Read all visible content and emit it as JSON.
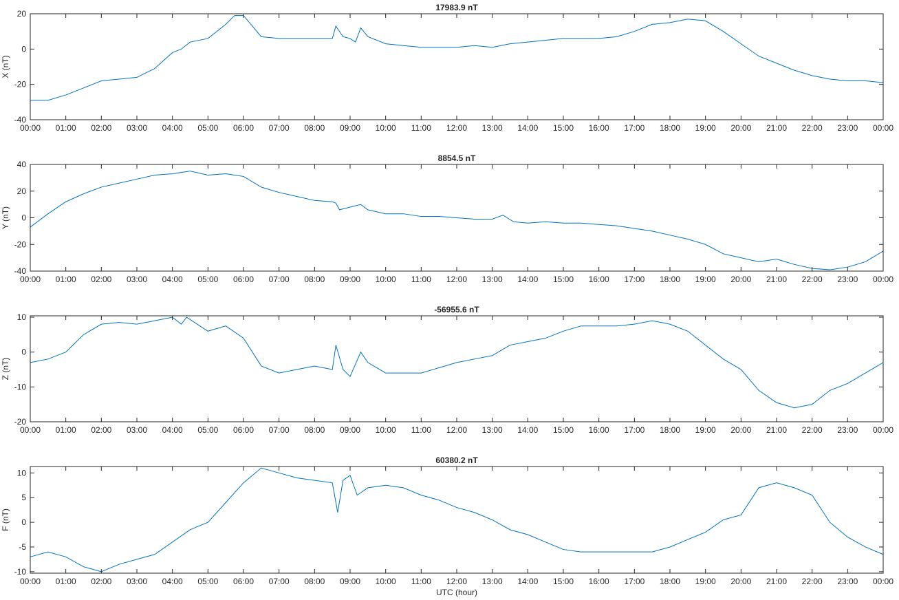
{
  "chart_data": [
    {
      "type": "line",
      "title": "17983.9 nT",
      "ylabel": "X (nT)",
      "x": [
        0,
        0.5,
        1,
        1.5,
        2,
        2.5,
        3,
        3.5,
        4,
        4.25,
        4.5,
        5,
        5.5,
        5.75,
        6,
        6.5,
        7,
        7.5,
        8,
        8.5,
        8.6,
        8.8,
        9,
        9.15,
        9.3,
        9.5,
        10,
        10.5,
        11,
        11.5,
        12,
        12.5,
        13,
        13.5,
        14,
        14.5,
        15,
        15.5,
        16,
        16.5,
        17,
        17.5,
        18,
        18.5,
        19,
        19.5,
        20,
        20.5,
        21,
        21.5,
        22,
        22.5,
        23,
        23.5,
        24
      ],
      "series": [
        {
          "color": "#0072bd",
          "values": [
            -29,
            -29,
            -26,
            -22,
            -18,
            -17,
            -16,
            -11,
            -2,
            0,
            4,
            6,
            14,
            19,
            19,
            7,
            6,
            6,
            6,
            6,
            13,
            7,
            6,
            4,
            12,
            7,
            3,
            2,
            1,
            1,
            1,
            2,
            1,
            3,
            4,
            5,
            6,
            6,
            6,
            7,
            10,
            14,
            15,
            17,
            16,
            10,
            3,
            -4,
            -8,
            -12,
            -15,
            -17,
            -18,
            -18,
            -19
          ]
        }
      ],
      "xlim": [
        0,
        24
      ],
      "ylim": [
        -40,
        20
      ],
      "yticks": [
        -40,
        -20,
        0,
        20
      ],
      "xticks": [
        {
          "value": 0,
          "label": "00:00"
        },
        {
          "value": 1,
          "label": "01:00"
        },
        {
          "value": 2,
          "label": "02:00"
        },
        {
          "value": 3,
          "label": "03:00"
        },
        {
          "value": 4,
          "label": "04:00"
        },
        {
          "value": 5,
          "label": "05:00"
        },
        {
          "value": 6,
          "label": "06:00"
        },
        {
          "value": 7,
          "label": "07:00"
        },
        {
          "value": 8,
          "label": "08:00"
        },
        {
          "value": 9,
          "label": "09:00"
        },
        {
          "value": 10,
          "label": "10:00"
        },
        {
          "value": 11,
          "label": "11:00"
        },
        {
          "value": 12,
          "label": "12:00"
        },
        {
          "value": 13,
          "label": "13:00"
        },
        {
          "value": 14,
          "label": "14:00"
        },
        {
          "value": 15,
          "label": "15:00"
        },
        {
          "value": 16,
          "label": "16:00"
        },
        {
          "value": 17,
          "label": "17:00"
        },
        {
          "value": 18,
          "label": "18:00"
        },
        {
          "value": 19,
          "label": "19:00"
        },
        {
          "value": 20,
          "label": "20:00"
        },
        {
          "value": 21,
          "label": "21:00"
        },
        {
          "value": 22,
          "label": "22:00"
        },
        {
          "value": 23,
          "label": "23:00"
        },
        {
          "value": 24,
          "label": "00:00"
        }
      ]
    },
    {
      "type": "line",
      "title": "8854.5 nT",
      "ylabel": "Y (nT)",
      "x": [
        0,
        0.5,
        1,
        1.5,
        2,
        2.5,
        3,
        3.5,
        4,
        4.5,
        5,
        5.5,
        6,
        6.5,
        7,
        7.5,
        8,
        8.5,
        8.6,
        8.7,
        9,
        9.3,
        9.5,
        10,
        10.5,
        11,
        11.5,
        12,
        12.5,
        13,
        13.3,
        13.6,
        14,
        14.5,
        15,
        15.5,
        16,
        16.5,
        17,
        17.5,
        18,
        18.5,
        19,
        19.5,
        20,
        20.5,
        21,
        21.5,
        22,
        22.5,
        23,
        23.5,
        24
      ],
      "series": [
        {
          "color": "#0072bd",
          "values": [
            -7,
            3,
            12,
            18,
            23,
            26,
            29,
            32,
            33,
            35,
            32,
            33,
            31,
            23,
            19,
            16,
            13,
            12,
            11,
            6,
            8,
            10,
            6,
            3,
            3,
            1,
            1,
            0,
            -1,
            -1,
            2,
            -3,
            -4,
            -3,
            -4,
            -4,
            -5,
            -6,
            -8,
            -10,
            -13,
            -16,
            -20,
            -27,
            -30,
            -33,
            -31,
            -35,
            -38,
            -39,
            -37,
            -33,
            -25
          ]
        }
      ],
      "xlim": [
        0,
        24
      ],
      "ylim": [
        -40,
        40
      ],
      "yticks": [
        -40,
        -20,
        0,
        20,
        40
      ],
      "xticks": [
        {
          "value": 0,
          "label": "00:00"
        },
        {
          "value": 1,
          "label": "01:00"
        },
        {
          "value": 2,
          "label": "02:00"
        },
        {
          "value": 3,
          "label": "03:00"
        },
        {
          "value": 4,
          "label": "04:00"
        },
        {
          "value": 5,
          "label": "05:00"
        },
        {
          "value": 6,
          "label": "06:00"
        },
        {
          "value": 7,
          "label": "07:00"
        },
        {
          "value": 8,
          "label": "08:00"
        },
        {
          "value": 9,
          "label": "09:00"
        },
        {
          "value": 10,
          "label": "10:00"
        },
        {
          "value": 11,
          "label": "11:00"
        },
        {
          "value": 12,
          "label": "12:00"
        },
        {
          "value": 13,
          "label": "13:00"
        },
        {
          "value": 14,
          "label": "14:00"
        },
        {
          "value": 15,
          "label": "15:00"
        },
        {
          "value": 16,
          "label": "16:00"
        },
        {
          "value": 17,
          "label": "17:00"
        },
        {
          "value": 18,
          "label": "18:00"
        },
        {
          "value": 19,
          "label": "19:00"
        },
        {
          "value": 20,
          "label": "20:00"
        },
        {
          "value": 21,
          "label": "21:00"
        },
        {
          "value": 22,
          "label": "22:00"
        },
        {
          "value": 23,
          "label": "23:00"
        },
        {
          "value": 24,
          "label": "00:00"
        }
      ]
    },
    {
      "type": "line",
      "title": "-56955.6 nT",
      "ylabel": "Z (nT)",
      "x": [
        0,
        0.5,
        1,
        1.5,
        2,
        2.5,
        3,
        3.5,
        4,
        4.25,
        4.4,
        5,
        5.5,
        6,
        6.5,
        7,
        7.5,
        8,
        8.5,
        8.6,
        8.8,
        9,
        9.3,
        9.5,
        10,
        10.5,
        11,
        11.5,
        12,
        12.5,
        13,
        13.5,
        14,
        14.5,
        15,
        15.5,
        16,
        16.5,
        17,
        17.5,
        18,
        18.5,
        19,
        19.5,
        20,
        20.5,
        21,
        21.5,
        22,
        22.5,
        23,
        23.5,
        24
      ],
      "series": [
        {
          "color": "#0072bd",
          "values": [
            -3,
            -2,
            0,
            5,
            8,
            8.5,
            8,
            9,
            10,
            8,
            10,
            6,
            7.5,
            4,
            -4,
            -6,
            -5,
            -4,
            -5,
            2,
            -5,
            -7,
            0,
            -3,
            -6,
            -6,
            -6,
            -4.5,
            -3,
            -2,
            -1,
            2,
            3,
            4,
            6,
            7.5,
            7.5,
            7.5,
            8,
            9,
            8,
            6,
            2,
            -2,
            -5,
            -11,
            -14.5,
            -16,
            -15,
            -11,
            -9,
            -6,
            -3
          ]
        }
      ],
      "xlim": [
        0,
        24
      ],
      "ylim": [
        -20,
        10.4
      ],
      "yticks": [
        -20,
        -10,
        0,
        10
      ],
      "xticks": [
        {
          "value": 0,
          "label": "00:00"
        },
        {
          "value": 1,
          "label": "01:00"
        },
        {
          "value": 2,
          "label": "02:00"
        },
        {
          "value": 3,
          "label": "03:00"
        },
        {
          "value": 4,
          "label": "04:00"
        },
        {
          "value": 5,
          "label": "05:00"
        },
        {
          "value": 6,
          "label": "06:00"
        },
        {
          "value": 7,
          "label": "07:00"
        },
        {
          "value": 8,
          "label": "08:00"
        },
        {
          "value": 9,
          "label": "09:00"
        },
        {
          "value": 10,
          "label": "10:00"
        },
        {
          "value": 11,
          "label": "11:00"
        },
        {
          "value": 12,
          "label": "12:00"
        },
        {
          "value": 13,
          "label": "13:00"
        },
        {
          "value": 14,
          "label": "14:00"
        },
        {
          "value": 15,
          "label": "15:00"
        },
        {
          "value": 16,
          "label": "16:00"
        },
        {
          "value": 17,
          "label": "17:00"
        },
        {
          "value": 18,
          "label": "18:00"
        },
        {
          "value": 19,
          "label": "19:00"
        },
        {
          "value": 20,
          "label": "20:00"
        },
        {
          "value": 21,
          "label": "21:00"
        },
        {
          "value": 22,
          "label": "22:00"
        },
        {
          "value": 23,
          "label": "23:00"
        },
        {
          "value": 24,
          "label": "00:00"
        }
      ]
    },
    {
      "type": "line",
      "title": "60380.2 nT",
      "ylabel": "F (nT)",
      "xlabel": "UTC (hour)",
      "x": [
        0,
        0.5,
        1,
        1.5,
        2,
        2.5,
        3,
        3.5,
        4,
        4.5,
        5,
        5.5,
        6,
        6.5,
        7,
        7.5,
        8,
        8.5,
        8.65,
        8.8,
        9,
        9.2,
        9.5,
        10,
        10.5,
        11,
        11.5,
        12,
        12.5,
        13,
        13.5,
        14,
        14.5,
        15,
        15.5,
        16,
        16.5,
        17,
        17.5,
        18,
        18.5,
        19,
        19.5,
        20,
        20.5,
        21,
        21.5,
        22,
        22.5,
        23,
        23.5,
        24
      ],
      "series": [
        {
          "color": "#0072bd",
          "values": [
            -7,
            -6,
            -7,
            -9,
            -10,
            -8.5,
            -7.5,
            -6.5,
            -4,
            -1.5,
            0,
            4,
            8,
            11,
            10,
            9,
            8.5,
            8,
            2,
            8.5,
            9.5,
            5.5,
            7,
            7.5,
            7,
            5.5,
            4.5,
            3,
            2,
            0.5,
            -1.5,
            -2.5,
            -4,
            -5.5,
            -6,
            -6,
            -6,
            -6,
            -6,
            -5,
            -3.5,
            -2,
            0.5,
            1.5,
            7,
            8,
            7,
            5.5,
            0,
            -3,
            -5,
            -6.5
          ]
        }
      ],
      "xlim": [
        0,
        24
      ],
      "ylim": [
        -10.3,
        11.3
      ],
      "yticks": [
        -10,
        -5,
        0,
        5,
        10
      ],
      "xticks": [
        {
          "value": 0,
          "label": "00:00"
        },
        {
          "value": 1,
          "label": "01:00"
        },
        {
          "value": 2,
          "label": "02:00"
        },
        {
          "value": 3,
          "label": "03:00"
        },
        {
          "value": 4,
          "label": "04:00"
        },
        {
          "value": 5,
          "label": "05:00"
        },
        {
          "value": 6,
          "label": "06:00"
        },
        {
          "value": 7,
          "label": "07:00"
        },
        {
          "value": 8,
          "label": "08:00"
        },
        {
          "value": 9,
          "label": "09:00"
        },
        {
          "value": 10,
          "label": "10:00"
        },
        {
          "value": 11,
          "label": "11:00"
        },
        {
          "value": 12,
          "label": "12:00"
        },
        {
          "value": 13,
          "label": "13:00"
        },
        {
          "value": 14,
          "label": "14:00"
        },
        {
          "value": 15,
          "label": "15:00"
        },
        {
          "value": 16,
          "label": "16:00"
        },
        {
          "value": 17,
          "label": "17:00"
        },
        {
          "value": 18,
          "label": "18:00"
        },
        {
          "value": 19,
          "label": "19:00"
        },
        {
          "value": 20,
          "label": "20:00"
        },
        {
          "value": 21,
          "label": "21:00"
        },
        {
          "value": 22,
          "label": "22:00"
        },
        {
          "value": 23,
          "label": "23:00"
        },
        {
          "value": 24,
          "label": "00:00"
        }
      ]
    }
  ]
}
